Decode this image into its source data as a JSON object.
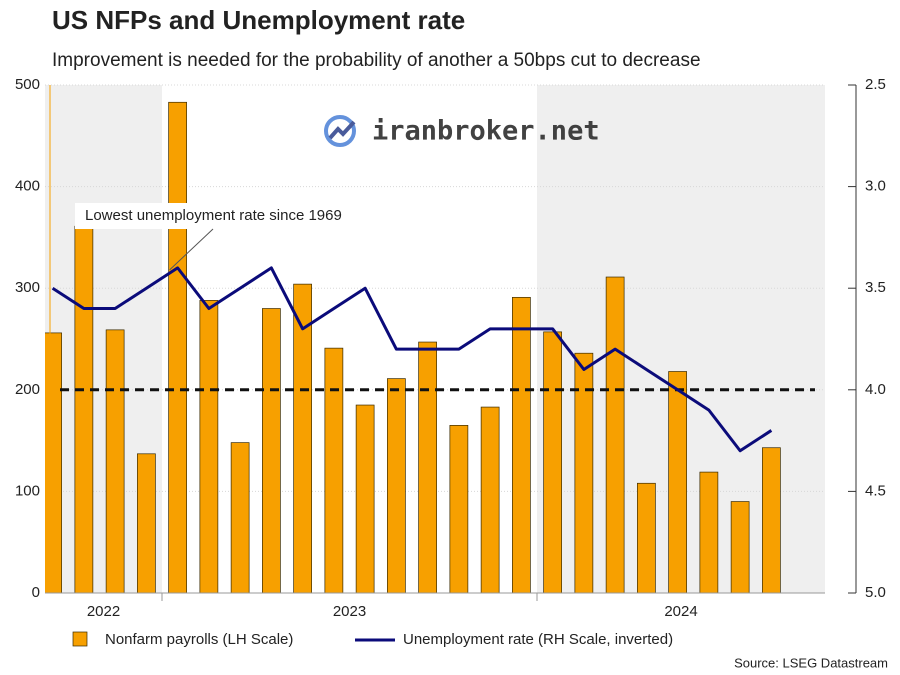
{
  "chart_data": {
    "type": "bar_line",
    "title": "US NFPs and Unemployment rate",
    "subtitle": "Improvement is needed for the probability of another a 50bps cut to decrease",
    "watermark": "iranbroker.net",
    "annotation": "Lowest unemployment rate since 1969",
    "source": "Source: LSEG Datastream",
    "categories": [
      null,
      null,
      null,
      null,
      null,
      null,
      null,
      null,
      null,
      null,
      null,
      null,
      null,
      null,
      null,
      null,
      null,
      null,
      null,
      null,
      null,
      null,
      null,
      null
    ],
    "year_groups": [
      {
        "label": "2022",
        "count": 4
      },
      {
        "label": "2023",
        "count": 12
      },
      {
        "label": "2024",
        "count": 8
      }
    ],
    "ylim": [
      0,
      500
    ],
    "yticks": [
      0,
      100,
      200,
      300,
      400,
      500
    ],
    "y2lim": [
      5.0,
      2.5
    ],
    "y2_inverted": true,
    "y2ticks": [
      2.5,
      {
        "value": 3,
        "label": "3.0"
      },
      3.5,
      {
        "value": 4,
        "label": "4.0"
      },
      4.5,
      {
        "value": 5,
        "label": "5.0"
      }
    ],
    "reference_line": 200,
    "grid": true,
    "legend": "bottom",
    "series": [
      {
        "name": "Nonfarm payrolls (LH Scale)",
        "type": "bar",
        "color": "#f7a000",
        "values": [
          256,
          361,
          259,
          137,
          483,
          288,
          148,
          280,
          304,
          241,
          185,
          211,
          247,
          165,
          183,
          291,
          257,
          236,
          311,
          108,
          218,
          119,
          90,
          143
        ]
      },
      {
        "name": "Unemployment rate (RH Scale, inverted)",
        "type": "line",
        "axis": "y2",
        "color": "#0b0b7a",
        "values": [
          3.5,
          3.6,
          3.6,
          3.5,
          3.4,
          3.6,
          3.5,
          3.4,
          3.7,
          3.6,
          3.5,
          3.8,
          3.8,
          3.8,
          3.7,
          3.7,
          3.7,
          3.9,
          3.8,
          3.9,
          4.0,
          4.1,
          4.3,
          4.2
        ]
      }
    ]
  }
}
